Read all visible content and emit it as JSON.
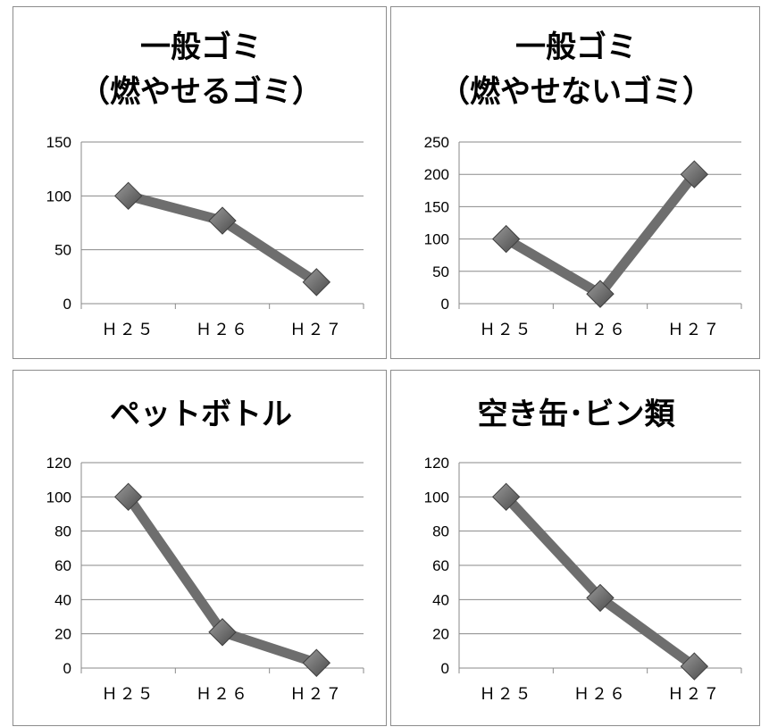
{
  "colors": {
    "line": "#6e6e6e",
    "marker_light": "#9a9a9a",
    "marker_dark": "#4a4a4a",
    "grid": "#8a8a8a"
  },
  "chart_data": [
    {
      "type": "line",
      "title": [
        "一般ゴミ",
        "（燃やせるゴミ）"
      ],
      "categories": [
        "Ｈ２５",
        "Ｈ２６",
        "Ｈ２７"
      ],
      "values": [
        100,
        77,
        20
      ],
      "ylim": [
        0,
        150
      ],
      "yticks": [
        "0",
        "50",
        "100",
        "150"
      ],
      "grid": true,
      "legend": "none"
    },
    {
      "type": "line",
      "title": [
        "一般ゴミ",
        "（燃やせないゴミ）"
      ],
      "categories": [
        "Ｈ２５",
        "Ｈ２６",
        "Ｈ２７"
      ],
      "values": [
        100,
        15,
        200
      ],
      "ylim": [
        0,
        250
      ],
      "yticks": [
        "0",
        "50",
        "100",
        "150",
        "200",
        "250"
      ],
      "grid": true,
      "legend": "none"
    },
    {
      "type": "line",
      "title": [
        "ペットボトル"
      ],
      "categories": [
        "Ｈ２５",
        "Ｈ２６",
        "Ｈ２７"
      ],
      "values": [
        100,
        21,
        3
      ],
      "ylim": [
        0,
        120
      ],
      "yticks": [
        "0",
        "20",
        "40",
        "60",
        "80",
        "100",
        "120"
      ],
      "grid": true,
      "legend": "none"
    },
    {
      "type": "line",
      "title": [
        "空き缶･ビン類"
      ],
      "categories": [
        "Ｈ２５",
        "Ｈ２６",
        "Ｈ２７"
      ],
      "values": [
        100,
        41,
        1
      ],
      "ylim": [
        0,
        120
      ],
      "yticks": [
        "0",
        "20",
        "40",
        "60",
        "80",
        "100",
        "120"
      ],
      "grid": true,
      "legend": "none"
    }
  ]
}
